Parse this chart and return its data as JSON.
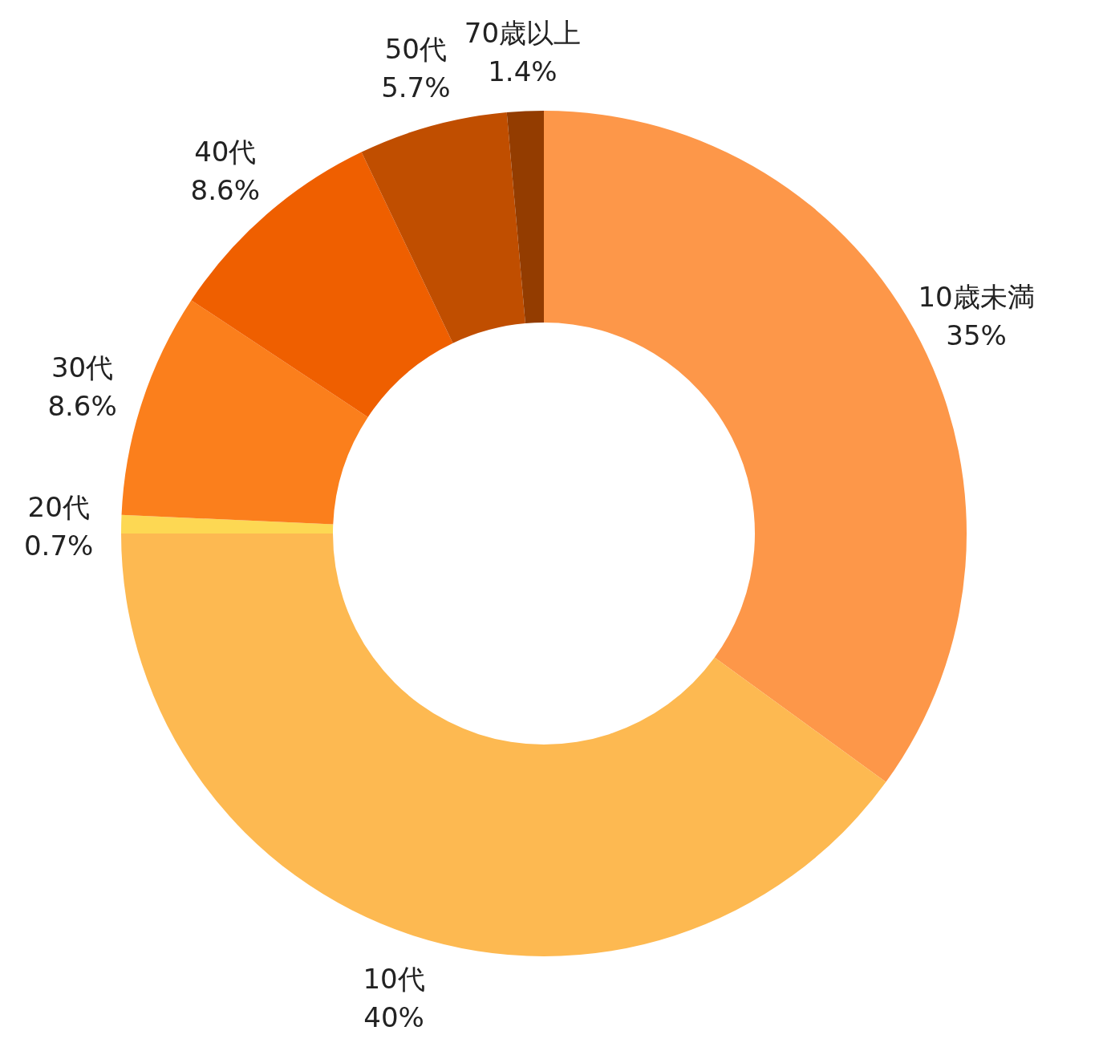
{
  "chart_data": {
    "type": "donut",
    "categories": [
      "10歳未満",
      "10代",
      "20代",
      "30代",
      "40代",
      "50代",
      "70歳以上"
    ],
    "values": [
      35,
      40,
      0.7,
      8.6,
      8.6,
      5.7,
      1.4
    ],
    "value_labels": [
      "35%",
      "40%",
      "0.7%",
      "8.6%",
      "8.6%",
      "5.7%",
      "1.4%"
    ],
    "colors": [
      "#fd9749",
      "#fdb951",
      "#fdd853",
      "#fb7f1c",
      "#ef5f00",
      "#c04e00",
      "#933c00"
    ],
    "legend": false
  }
}
